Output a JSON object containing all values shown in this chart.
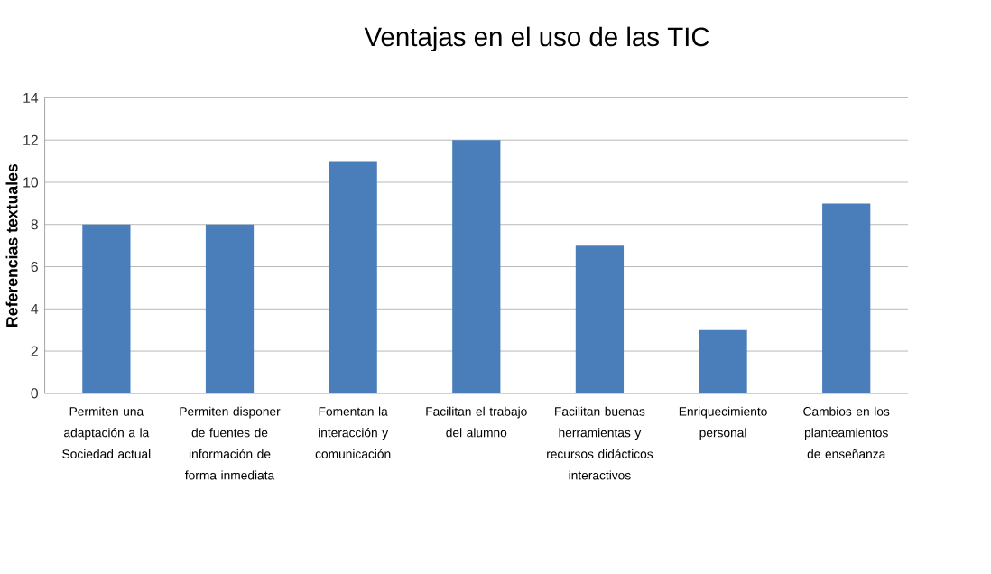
{
  "chart_data": {
    "type": "bar",
    "title": "Ventajas en el uso de las TIC",
    "ylabel": "Referencias textuales",
    "categories": [
      "Permiten una adaptación a la Sociedad actual",
      "Permiten disponer de fuentes de información de forma inmediata",
      "Fomentan la interacción y comunicación",
      "Facilitan el trabajo del alumno",
      "Facilitan buenas herramientas y recursos didácticos interactivos",
      "Enriquecimiento personal",
      "Cambios en los planteamientos de enseñanza"
    ],
    "values": [
      8,
      8,
      11,
      12,
      7,
      3,
      9
    ],
    "color": "#4a7ebb",
    "ylim": [
      0,
      14
    ],
    "yticks": [
      0,
      2,
      4,
      6,
      8,
      10,
      12,
      14
    ],
    "grid": "y"
  }
}
